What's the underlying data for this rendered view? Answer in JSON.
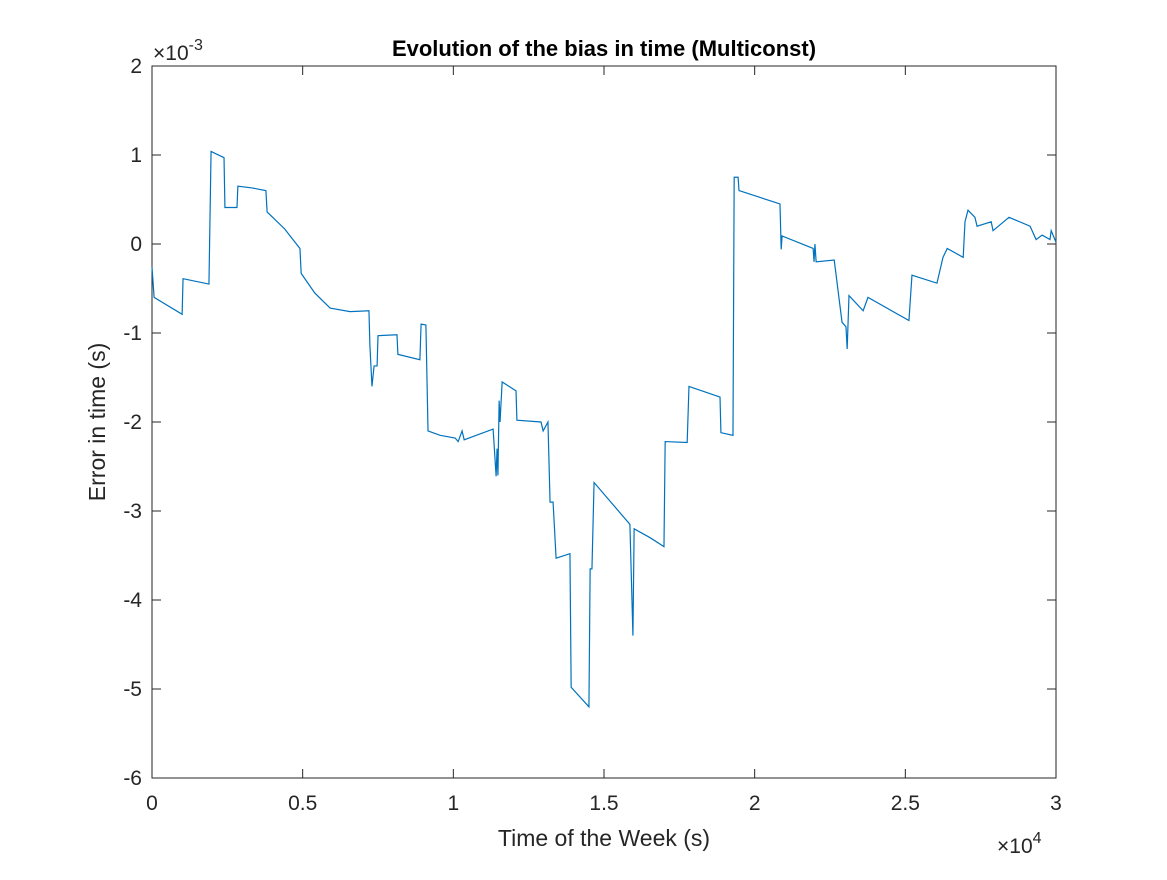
{
  "chart_data": {
    "type": "line",
    "title": "Evolution of the bias in time (Multiconst)",
    "x_label": "Time of the Week (s)",
    "y_label": "Error in time (s)",
    "x_multiplier": {
      "base": "×10",
      "power": "4"
    },
    "y_multiplier": {
      "base": "×10",
      "power": "-3"
    },
    "xlim": [
      0,
      3
    ],
    "ylim": [
      -6,
      2
    ],
    "xticks": [
      0,
      0.5,
      1,
      1.5,
      2,
      2.5,
      3
    ],
    "yticks": [
      -6,
      -5,
      -4,
      -3,
      -2,
      -1,
      0,
      1,
      2
    ],
    "grid": false,
    "series": [
      {
        "color": "#0072bd",
        "x": [
          0,
          0.007,
          0.1,
          0.103,
          0.189,
          0.196,
          0.239,
          0.242,
          0.282,
          0.285,
          0.332,
          0.378,
          0.382,
          0.44,
          0.491,
          0.495,
          0.54,
          0.591,
          0.657,
          0.72,
          0.723,
          0.73,
          0.737,
          0.747,
          0.75,
          0.813,
          0.816,
          0.889,
          0.893,
          0.909,
          0.916,
          0.956,
          1.006,
          1.016,
          1.029,
          1.036,
          1.132,
          1.142,
          1.145,
          1.148,
          1.152,
          1.155,
          1.162,
          1.208,
          1.211,
          1.291,
          1.298,
          1.314,
          1.321,
          1.331,
          1.341,
          1.387,
          1.391,
          1.45,
          1.454,
          1.46,
          1.467,
          1.586,
          1.596,
          1.6,
          1.653,
          1.699,
          1.703,
          1.776,
          1.782,
          1.885,
          1.888,
          1.928,
          1.932,
          1.945,
          1.948,
          2.084,
          2.088,
          2.091,
          2.194,
          2.197,
          2.2,
          2.204,
          2.264,
          2.29,
          2.303,
          2.307,
          2.313,
          2.36,
          2.376,
          2.512,
          2.522,
          2.605,
          2.625,
          2.639,
          2.692,
          2.698,
          2.708,
          2.731,
          2.738,
          2.785,
          2.791,
          2.844,
          2.914,
          2.934,
          2.954,
          2.98,
          2.984,
          3.0
        ],
        "values": [
          -0.26,
          -0.6,
          -0.79,
          -0.39,
          -0.45,
          1.04,
          0.97,
          0.41,
          0.41,
          0.65,
          0.63,
          0.6,
          0.36,
          0.17,
          -0.05,
          -0.33,
          -0.55,
          -0.72,
          -0.76,
          -0.75,
          -1.13,
          -1.6,
          -1.37,
          -1.37,
          -1.03,
          -1.02,
          -1.24,
          -1.3,
          -0.9,
          -0.91,
          -2.1,
          -2.15,
          -2.18,
          -2.22,
          -2.1,
          -2.2,
          -2.08,
          -2.61,
          -2.3,
          -2.6,
          -1.76,
          -2.0,
          -1.55,
          -1.65,
          -1.98,
          -2.0,
          -2.1,
          -2.0,
          -2.9,
          -2.9,
          -3.53,
          -3.48,
          -4.98,
          -5.2,
          -3.65,
          -3.65,
          -2.68,
          -3.15,
          -4.4,
          -3.2,
          -3.3,
          -3.4,
          -2.22,
          -2.23,
          -1.6,
          -1.72,
          -2.12,
          -2.15,
          0.75,
          0.75,
          0.6,
          0.45,
          -0.06,
          0.09,
          -0.05,
          -0.2,
          0.0,
          -0.2,
          -0.18,
          -0.88,
          -0.93,
          -1.18,
          -0.58,
          -0.75,
          -0.6,
          -0.86,
          -0.35,
          -0.44,
          -0.15,
          -0.05,
          -0.15,
          0.25,
          0.38,
          0.3,
          0.2,
          0.25,
          0.15,
          0.3,
          0.2,
          0.05,
          0.1,
          0.05,
          0.15,
          0.02
        ]
      }
    ]
  }
}
